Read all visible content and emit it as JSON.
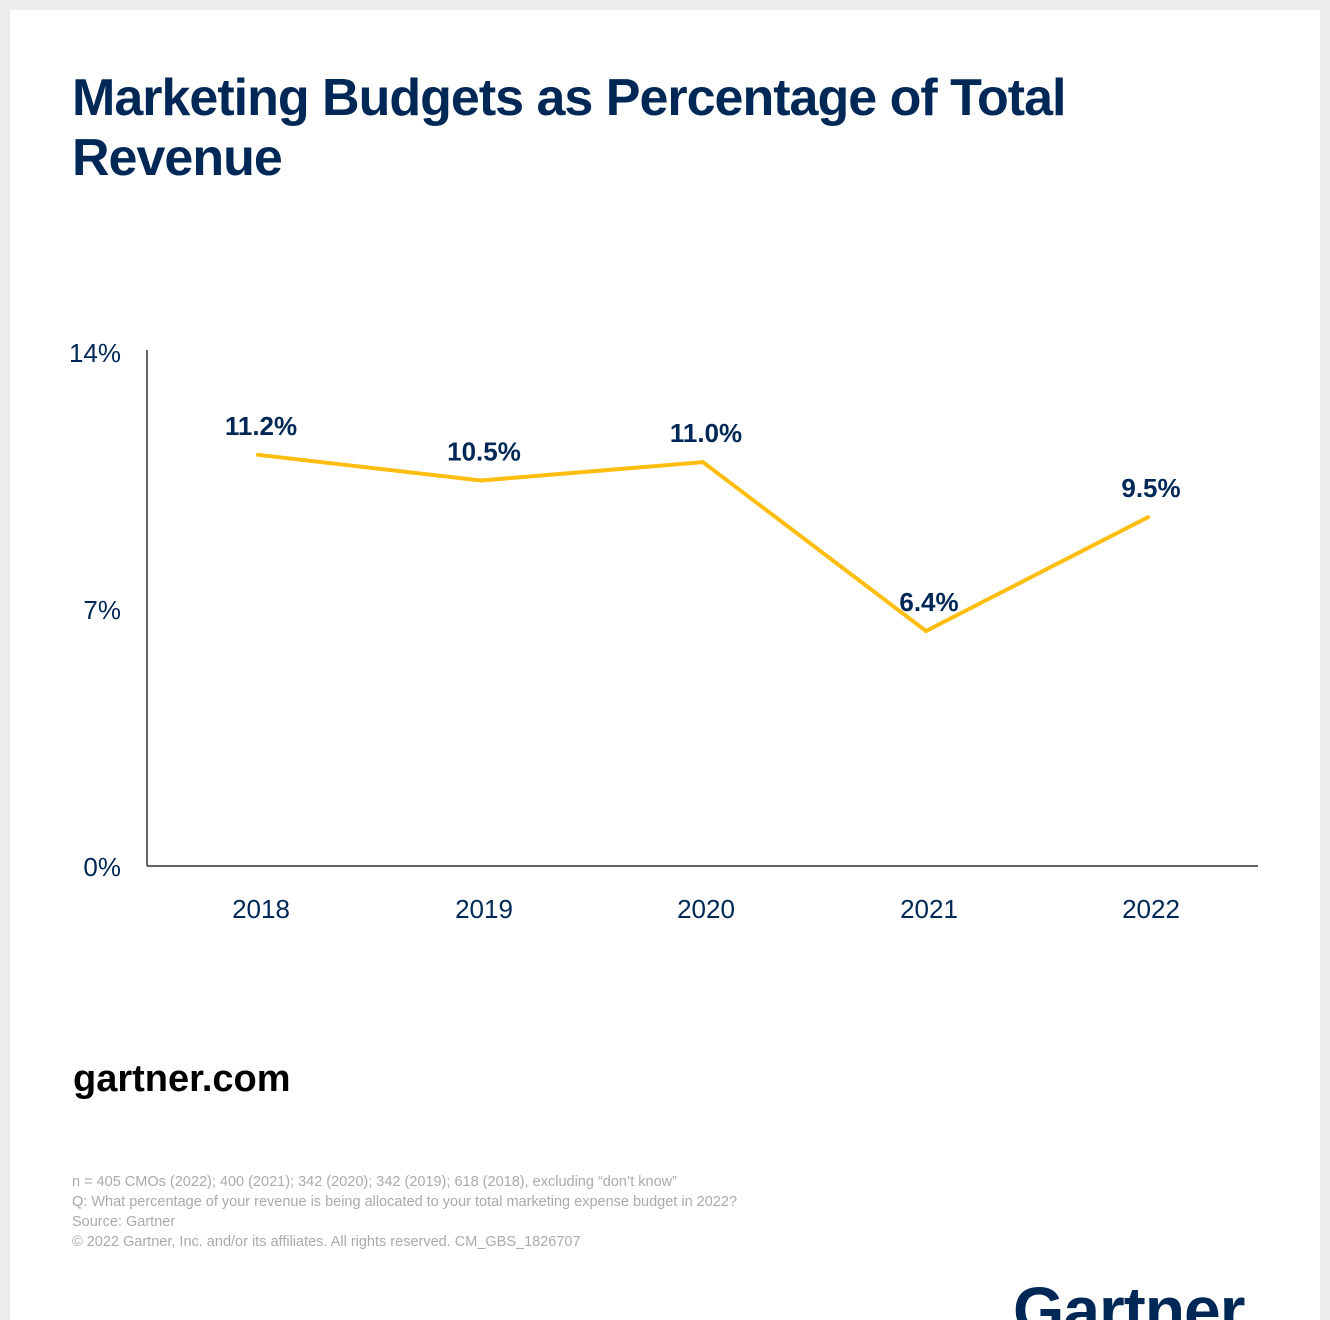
{
  "chart_data": {
    "type": "line",
    "title": "Marketing Budgets as Percentage of Total Revenue",
    "categories": [
      "2018",
      "2019",
      "2020",
      "2021",
      "2022"
    ],
    "values": [
      11.2,
      10.5,
      11.0,
      6.4,
      9.5
    ],
    "data_labels": [
      "11.2%",
      "10.5%",
      "11.0%",
      "6.4%",
      "9.5%"
    ],
    "ylim": [
      0,
      14
    ],
    "yticks": [
      {
        "value": 0,
        "label": "0%"
      },
      {
        "value": 7,
        "label": "7%"
      },
      {
        "value": 14,
        "label": "14%"
      }
    ],
    "grid": false,
    "line_color": "#FFBE0F",
    "label_color": "#002856"
  },
  "site": "gartner.com",
  "notes": [
    "n =  405 CMOs (2022); 400 (2021); 342 (2020); 342 (2019); 618 (2018), excluding “don’t know”",
    "Q: What percentage of your revenue is being allocated to your total marketing expense budget in 2022?",
    "Source: Gartner",
    "© 2022 Gartner, Inc. and/or its affiliates. All rights reserved. CM_GBS_1826707"
  ],
  "logo": "Gartner"
}
